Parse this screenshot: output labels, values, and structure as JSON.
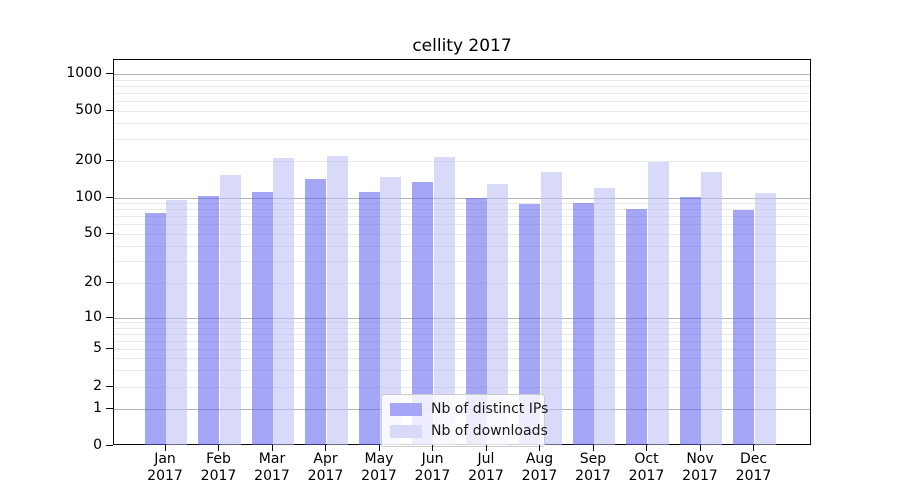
{
  "chart_data": {
    "type": "bar",
    "title": "cellity 2017",
    "categories": [
      "Jan",
      "Feb",
      "Mar",
      "Apr",
      "May",
      "Jun",
      "Jul",
      "Aug",
      "Sep",
      "Oct",
      "Nov",
      "Dec"
    ],
    "category_year": "2017",
    "series": [
      {
        "name": "Nb of distinct IPs",
        "color_hex": "#a6a6f7",
        "color_fill": "rgba(93,93,240,0.55)",
        "values": [
          75,
          104,
          112,
          142,
          112,
          135,
          100,
          89,
          91,
          81,
          102,
          79
        ]
      },
      {
        "name": "Nb of downloads",
        "color_hex": "#d9d9f9",
        "color_fill": "rgba(186,186,244,0.55)",
        "values": [
          95,
          153,
          210,
          220,
          148,
          215,
          130,
          163,
          120,
          194,
          161,
          109
        ]
      }
    ],
    "xlabel": "",
    "ylabel": "",
    "yticks": [
      0,
      1,
      2,
      5,
      10,
      20,
      50,
      100,
      200,
      500,
      1000
    ],
    "yscale": "symlog",
    "ylim": [
      0,
      1300
    ],
    "grid": true,
    "legend_position": "lower center",
    "colors": {
      "major_gridline": "#b5b5b5",
      "minor_gridline": "#e9e9e9",
      "axis": "#0a0a0a",
      "text": "#000000"
    }
  }
}
